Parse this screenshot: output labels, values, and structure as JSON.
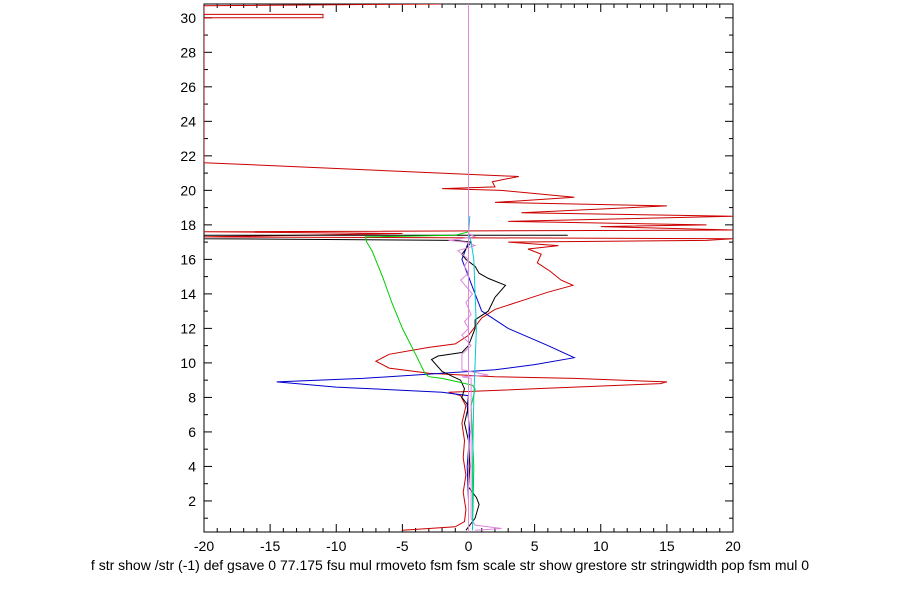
{
  "chart_data": {
    "type": "line",
    "title": "",
    "xlabel": "f str show /str (-1) def gsave 0 77.175 fsu mul rmoveto fsm fsm scale str show grestore str stringwidth pop fsm mul 0",
    "ylabel": "",
    "xlim": [
      -20,
      20
    ],
    "ylim": [
      0.2,
      30.8
    ],
    "x_ticks": [
      "-20",
      "-15",
      "-10",
      "-5",
      "0",
      "5",
      "10",
      "15",
      "20"
    ],
    "y_ticks": [
      "2",
      "4",
      "6",
      "8",
      "10",
      "12",
      "14",
      "16",
      "18",
      "20",
      "22",
      "24",
      "26",
      "28",
      "30"
    ],
    "grid": false,
    "legend": "none",
    "series": [
      {
        "color": "#cc0000",
        "points": [
          [
            -5,
            0.3
          ],
          [
            -1,
            0.5
          ],
          [
            -0.3,
            0.8
          ],
          [
            -0.2,
            1.5
          ],
          [
            -0.4,
            2.5
          ],
          [
            -0.2,
            3.5
          ],
          [
            -0.4,
            4.5
          ],
          [
            -0.3,
            5.5
          ],
          [
            -0.5,
            6.5
          ],
          [
            -0.2,
            7.5
          ],
          [
            -0.6,
            8.1
          ],
          [
            -1.5,
            8.3
          ],
          [
            5,
            8.5
          ],
          [
            14.5,
            8.8
          ],
          [
            15,
            8.9
          ],
          [
            8,
            9.1
          ],
          [
            2,
            9.2
          ],
          [
            -3,
            9.4
          ],
          [
            -6,
            9.7
          ],
          [
            -7,
            10.1
          ],
          [
            -6,
            10.5
          ],
          [
            -3,
            10.9
          ],
          [
            -1,
            11.1
          ],
          [
            0,
            11.6
          ],
          [
            0.5,
            12.1
          ],
          [
            1,
            12.6
          ],
          [
            2,
            13.1
          ],
          [
            4,
            13.6
          ],
          [
            6,
            14.1
          ],
          [
            7.9,
            14.5
          ],
          [
            7,
            14.8
          ],
          [
            6.2,
            15.3
          ],
          [
            5.2,
            15.8
          ],
          [
            5.5,
            16.3
          ],
          [
            4.5,
            16.6
          ],
          [
            6.8,
            16.8
          ],
          [
            3,
            17.0
          ],
          [
            18,
            17.1
          ],
          [
            20,
            17.2
          ],
          [
            -20,
            17.3
          ],
          [
            -5,
            17.5
          ],
          [
            -20,
            17.6
          ],
          [
            20,
            17.7
          ],
          [
            10,
            17.9
          ],
          [
            18,
            18.0
          ],
          [
            3,
            18.2
          ],
          [
            20,
            18.5
          ],
          [
            4,
            18.7
          ],
          [
            15,
            19.1
          ],
          [
            2,
            19.3
          ],
          [
            8,
            19.6
          ],
          [
            2.5,
            20.0
          ],
          [
            -2,
            20.1
          ],
          [
            2,
            20.2
          ],
          [
            1.8,
            20.5
          ],
          [
            3.8,
            20.8
          ],
          [
            -20,
            21.6
          ],
          [
            -20,
            21.7
          ],
          [
            -20,
            30.0
          ],
          [
            -11,
            30.0
          ],
          [
            -11,
            30.2
          ],
          [
            -20,
            30.2
          ],
          [
            -20,
            30.7
          ],
          [
            -2,
            30.8
          ]
        ]
      },
      {
        "color": "#0000cc",
        "points": [
          [
            0,
            0.3
          ],
          [
            0,
            2
          ],
          [
            -0.1,
            4
          ],
          [
            0.1,
            6
          ],
          [
            -0.1,
            7.5
          ],
          [
            0,
            8.1
          ],
          [
            -2,
            8.3
          ],
          [
            -10,
            8.6
          ],
          [
            -14.5,
            8.9
          ],
          [
            -8,
            9.1
          ],
          [
            -4,
            9.3
          ],
          [
            2,
            9.6
          ],
          [
            5,
            9.9
          ],
          [
            8,
            10.3
          ],
          [
            6,
            11.0
          ],
          [
            3,
            12.0
          ],
          [
            1,
            13.0
          ],
          [
            0.5,
            14.0
          ],
          [
            0,
            15.0
          ],
          [
            -0.5,
            16.0
          ],
          [
            0,
            17.0
          ]
        ]
      },
      {
        "color": "#000000",
        "points": [
          [
            -0.2,
            0.3
          ],
          [
            0.5,
            1.0
          ],
          [
            0.8,
            1.8
          ],
          [
            0.6,
            2.2
          ],
          [
            0,
            2.8
          ],
          [
            0.1,
            4.0
          ],
          [
            0,
            5.5
          ],
          [
            -0.3,
            6.5
          ],
          [
            0,
            7.5
          ],
          [
            -0.5,
            8.0
          ],
          [
            -0.3,
            8.5
          ],
          [
            -0.6,
            9.0
          ],
          [
            -2,
            9.5
          ],
          [
            -2.8,
            10.2
          ],
          [
            -2.3,
            10.4
          ],
          [
            -0.5,
            10.6
          ],
          [
            0,
            11.0
          ],
          [
            0.5,
            12.0
          ],
          [
            0.5,
            12.5
          ],
          [
            1.5,
            13.0
          ],
          [
            2,
            13.8
          ],
          [
            2.8,
            14.5
          ],
          [
            1.5,
            14.9
          ],
          [
            0.8,
            15.2
          ],
          [
            0.5,
            15.6
          ],
          [
            -0.2,
            16.0
          ],
          [
            -0.5,
            16.3
          ],
          [
            0.2,
            17.0
          ],
          [
            -1,
            17.1
          ],
          [
            -20,
            17.2
          ],
          [
            -20,
            17.4
          ],
          [
            -10,
            17.4
          ],
          [
            7.5,
            17.4
          ]
        ]
      },
      {
        "color": "#00cc00",
        "points": [
          [
            0.3,
            0.3
          ],
          [
            0.4,
            4
          ],
          [
            0.2,
            7.5
          ],
          [
            0.5,
            8.5
          ],
          [
            0.3,
            8.7
          ],
          [
            -0.8,
            8.9
          ],
          [
            -2,
            9.1
          ],
          [
            -3,
            9.2
          ],
          [
            -3.3,
            9.4
          ],
          [
            -4,
            10.5
          ],
          [
            -5,
            12.0
          ],
          [
            -5.8,
            13.5
          ],
          [
            -6.5,
            15.0
          ],
          [
            -7.3,
            16.5
          ],
          [
            -7.7,
            17.0
          ],
          [
            -7.8,
            17.3
          ],
          [
            -1,
            17.4
          ],
          [
            0,
            17.6
          ]
        ]
      },
      {
        "color": "#dd88dd",
        "points": [
          [
            0.5,
            0.3
          ],
          [
            2.5,
            0.4
          ],
          [
            0.5,
            0.6
          ],
          [
            0.2,
            1.0
          ],
          [
            0.2,
            9.1
          ],
          [
            -0.5,
            9.2
          ],
          [
            1.5,
            9.3
          ],
          [
            -0.5,
            9.6
          ],
          [
            -0.5,
            10.5
          ],
          [
            0.2,
            11.0
          ],
          [
            -0.5,
            11.6
          ],
          [
            0,
            12.0
          ],
          [
            -0.3,
            12.4
          ],
          [
            0.2,
            12.8
          ],
          [
            -0.2,
            13.5
          ],
          [
            0.3,
            14.0
          ],
          [
            -0.6,
            14.8
          ],
          [
            0,
            15.2
          ],
          [
            -0.3,
            15.6
          ],
          [
            0,
            16.0
          ],
          [
            -0.8,
            16.5
          ],
          [
            0.5,
            16.8
          ],
          [
            -0.2,
            17.0
          ],
          [
            -1.5,
            17.1
          ],
          [
            0.5,
            17.3
          ],
          [
            0,
            17.5
          ]
        ]
      },
      {
        "color": "#00cccc",
        "points": [
          [
            0.3,
            0.3
          ],
          [
            0.3,
            4
          ],
          [
            0.4,
            8
          ],
          [
            0.5,
            10
          ],
          [
            0.6,
            12
          ],
          [
            0.5,
            14
          ],
          [
            0.4,
            16
          ],
          [
            0.2,
            17.0
          ],
          [
            0,
            17.5
          ],
          [
            0.1,
            18.5
          ]
        ]
      },
      {
        "color": "#dd88dd",
        "points": [
          [
            0,
            0.2
          ],
          [
            0,
            30.8
          ]
        ]
      }
    ]
  }
}
